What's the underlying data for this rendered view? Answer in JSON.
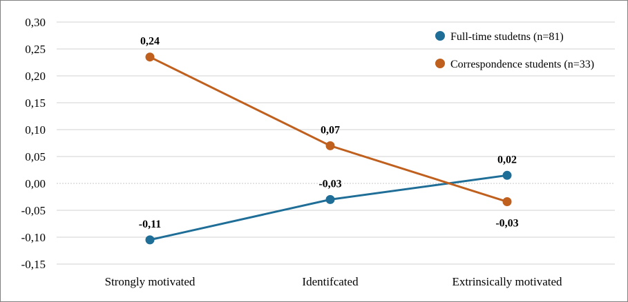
{
  "chart_data": {
    "type": "line",
    "categories": [
      "Strongly motivated",
      "Identifcated",
      "Extrinsically motivated"
    ],
    "series": [
      {
        "name": "Full-time studetns (n=81)",
        "color": "#1f6e98",
        "values": [
          -0.105,
          -0.03,
          0.015
        ],
        "labels": [
          "-0,11",
          "-0,03",
          "0,02"
        ]
      },
      {
        "name": "Correspondence students (n=33)",
        "color": "#c0601f",
        "values": [
          0.235,
          0.07,
          -0.034
        ],
        "labels": [
          "0,24",
          "0,07",
          "-0,03"
        ]
      }
    ],
    "ylim": [
      -0.15,
      0.3
    ],
    "yticks": [
      "-0,15",
      "-0,10",
      "-0,05",
      "0,00",
      "0,05",
      "0,10",
      "0,15",
      "0,20",
      "0,25",
      "0,30"
    ],
    "ytick_values": [
      -0.15,
      -0.1,
      -0.05,
      0.0,
      0.05,
      0.1,
      0.15,
      0.2,
      0.25,
      0.3
    ],
    "grid": true,
    "legend_position": "top-right"
  }
}
